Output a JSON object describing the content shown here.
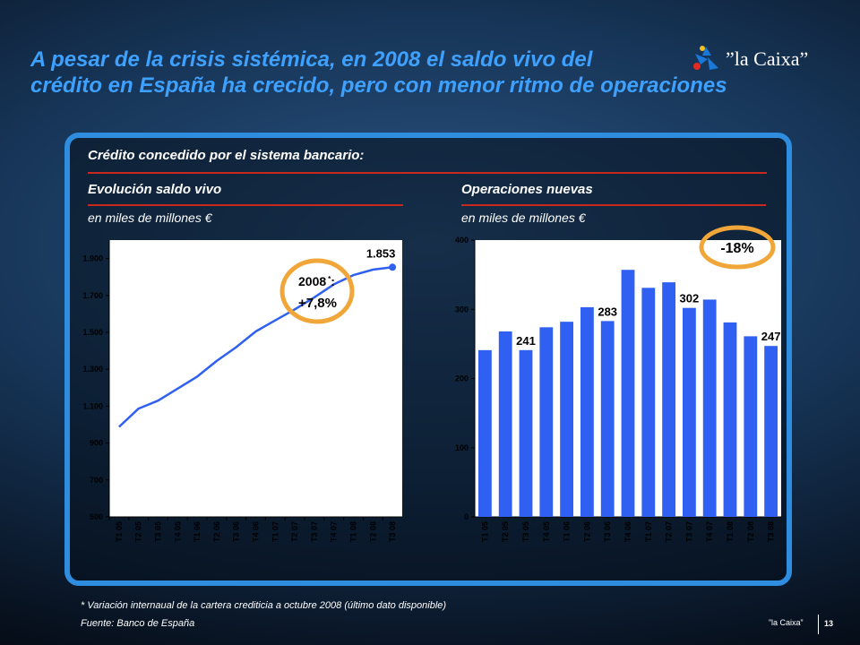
{
  "page": {
    "title_line1": "A pesar de la crisis sistémica, en 2008 el saldo vivo del",
    "title_line2": "crédito en España ha crecido, pero con menor ritmo de operaciones",
    "logo_text": "”la Caixa”",
    "footnote": "* Variación internaual de la cartera crediticia a octubre 2008 (último dato disponible)",
    "source": "Fuente: Banco de España",
    "brand": "”la Caixa”",
    "page_number": "13"
  },
  "panel": {
    "main_header": "Crédito concedido por el sistema bancario:",
    "left_header": "Evolución saldo vivo",
    "left_unit": "en miles de millones €",
    "right_header": "Operaciones nuevas",
    "right_unit": "en miles de millones €"
  },
  "colors": {
    "title": "#3ea0ff",
    "bar": "#2f60f2",
    "line": "#2f60f2",
    "highlight_ellipse": "#f0a638",
    "panel_border": "#2e8ddf",
    "rule": "#c8281e",
    "plot_bg": "#ffffff"
  },
  "chart_data": [
    {
      "type": "line",
      "categories": [
        "T1 05",
        "T2 05",
        "T3 05",
        "T4 05",
        "T1 06",
        "T2 06",
        "T3 06",
        "T4 06",
        "T1 07",
        "T2 07",
        "T3 07",
        "T4 07",
        "T1 08",
        "T2 08",
        "T3 08"
      ],
      "values": [
        988,
        1087,
        1130,
        1195,
        1260,
        1345,
        1420,
        1505,
        1565,
        1625,
        1690,
        1760,
        1810,
        1840,
        1853
      ],
      "yticks": [
        500,
        700,
        900,
        1100,
        1300,
        1500,
        1700,
        1900
      ],
      "ytick_labels": [
        "500",
        "700",
        "900",
        "1.100",
        "1.300",
        "1.500",
        "1.700",
        "1.900"
      ],
      "ylim": [
        500,
        2000
      ],
      "data_labels": [
        {
          "index": 14,
          "text": "1.853"
        }
      ],
      "annotation": {
        "line1": "2008",
        "sup": "*",
        "colon": ":",
        "line2": "+7,8%"
      }
    },
    {
      "type": "bar",
      "categories": [
        "T1 05",
        "T2 05",
        "T3 05",
        "T4 05",
        "T1 06",
        "T2 06",
        "T3 06",
        "T4 06",
        "T1 07",
        "T2 07",
        "T3 07",
        "T4 07",
        "T1 08",
        "T2 08",
        "T3 08"
      ],
      "values": [
        241,
        268,
        241,
        274,
        282,
        303,
        283,
        357,
        331,
        339,
        302,
        314,
        281,
        261,
        247
      ],
      "yticks": [
        0,
        100,
        200,
        300,
        400
      ],
      "ytick_labels": [
        "0",
        "100",
        "200",
        "300",
        "400"
      ],
      "ylim": [
        0,
        400
      ],
      "data_labels": [
        {
          "index": 2,
          "text": "241"
        },
        {
          "index": 6,
          "text": "283"
        },
        {
          "index": 10,
          "text": "302"
        },
        {
          "index": 14,
          "text": "247"
        }
      ],
      "annotation": {
        "text": "-18%"
      }
    }
  ]
}
